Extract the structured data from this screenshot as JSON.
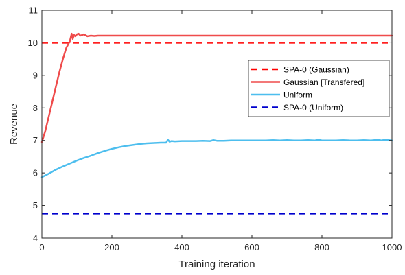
{
  "chart_data": {
    "type": "line",
    "xlabel": "Training iteration",
    "ylabel": "Revenue",
    "xlim": [
      0,
      1000
    ],
    "ylim": [
      4,
      11
    ],
    "xticks": [
      0,
      200,
      400,
      600,
      800,
      1000
    ],
    "yticks": [
      4,
      5,
      6,
      7,
      8,
      9,
      10,
      11
    ],
    "grid": false,
    "legend_position": "top-right",
    "series": [
      {
        "name": "SPA-0 (Gaussian)",
        "color": "#ff0000",
        "style": "dashed",
        "x": [
          0,
          1000
        ],
        "y": [
          10.0,
          10.0
        ]
      },
      {
        "name": "Gaussian [Transfered]",
        "color": "#ef4b4b",
        "style": "solid",
        "x": [
          0,
          10,
          20,
          30,
          40,
          50,
          60,
          70,
          80,
          85,
          88,
          92,
          96,
          100,
          105,
          110,
          115,
          120,
          130,
          140,
          150,
          160,
          200,
          300,
          400,
          500,
          600,
          700,
          800,
          900,
          1000
        ],
        "y": [
          6.95,
          7.3,
          7.75,
          8.2,
          8.65,
          9.1,
          9.5,
          9.85,
          10.05,
          10.28,
          10.12,
          10.24,
          10.2,
          10.26,
          10.28,
          10.22,
          10.24,
          10.26,
          10.2,
          10.22,
          10.21,
          10.22,
          10.22,
          10.22,
          10.22,
          10.22,
          10.22,
          10.22,
          10.22,
          10.22,
          10.22
        ]
      },
      {
        "name": "Uniform",
        "color": "#4dbeee",
        "style": "solid",
        "x": [
          0,
          20,
          40,
          60,
          80,
          100,
          120,
          140,
          160,
          180,
          200,
          220,
          240,
          260,
          280,
          300,
          320,
          340,
          355,
          360,
          365,
          370,
          380,
          400,
          420,
          440,
          460,
          480,
          490,
          500,
          520,
          540,
          560,
          580,
          600,
          620,
          640,
          660,
          680,
          700,
          720,
          740,
          760,
          780,
          790,
          800,
          820,
          840,
          860,
          880,
          900,
          920,
          940,
          960,
          970,
          980,
          1000
        ],
        "y": [
          5.87,
          5.98,
          6.1,
          6.2,
          6.29,
          6.38,
          6.46,
          6.53,
          6.61,
          6.68,
          6.74,
          6.79,
          6.83,
          6.86,
          6.89,
          6.91,
          6.92,
          6.93,
          6.93,
          7.02,
          6.96,
          6.98,
          6.97,
          6.98,
          6.98,
          6.98,
          6.99,
          6.98,
          7.01,
          6.99,
          6.99,
          7.0,
          7.0,
          7.0,
          7.0,
          7.0,
          7.0,
          7.01,
          7.0,
          7.01,
          7.0,
          7.0,
          7.01,
          7.0,
          7.02,
          7.0,
          7.0,
          7.0,
          7.01,
          7.0,
          7.0,
          7.01,
          7.0,
          7.02,
          7.0,
          7.02,
          7.0
        ]
      },
      {
        "name": "SPA-0 (Uniform)",
        "color": "#0000cd",
        "style": "dashed",
        "x": [
          0,
          1000
        ],
        "y": [
          4.75,
          4.75
        ]
      }
    ]
  }
}
